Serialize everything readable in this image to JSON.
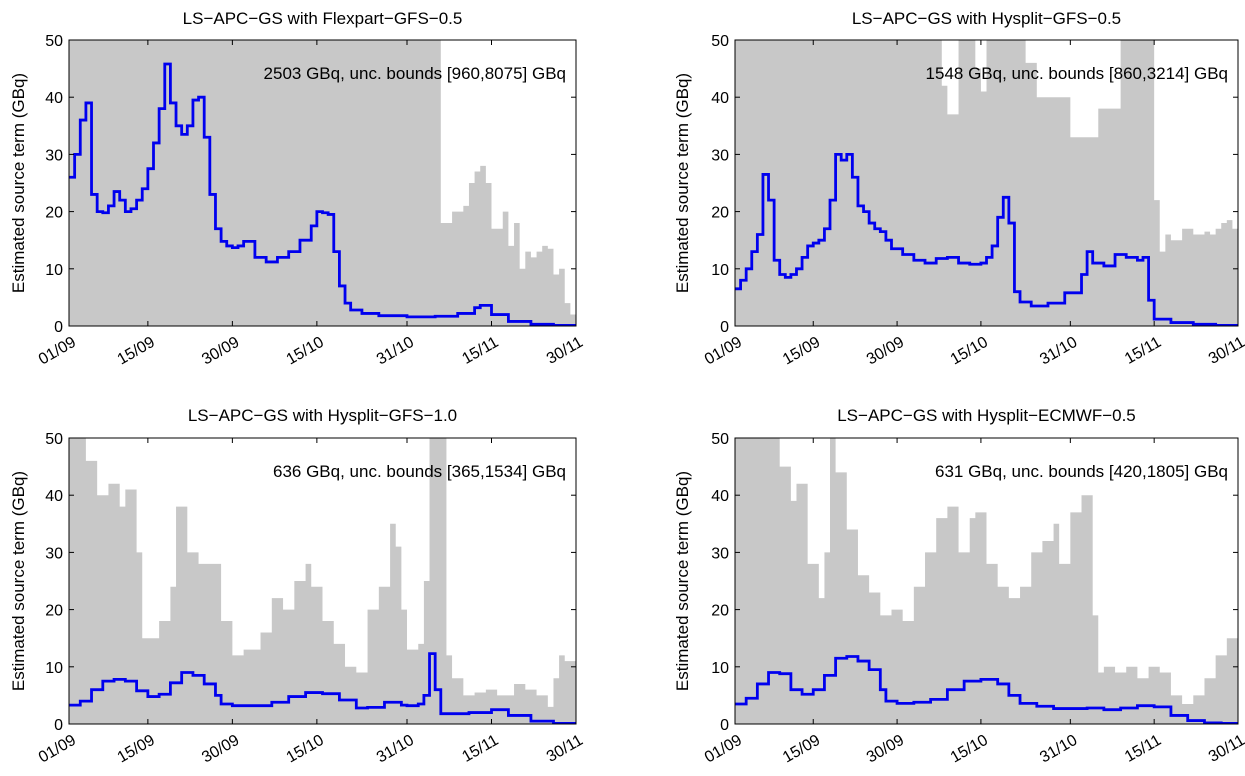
{
  "chart_data": [
    {
      "type": "line",
      "title": "LS−APC−GS with Flexpart−GFS−0.5",
      "ylabel": "Estimated source term (GBq)",
      "xlabel": "",
      "annotation": "2503 GBq, unc. bounds [960,8075] GBq",
      "xlim": [
        "01/09",
        "30/11"
      ],
      "ylim": [
        0,
        50
      ],
      "yticks": [
        0,
        10,
        20,
        30,
        40,
        50
      ],
      "xticks": [
        "01/09",
        "15/09",
        "30/09",
        "15/10",
        "31/10",
        "15/11",
        "30/11"
      ],
      "grid": false,
      "colors": {
        "estimate": "#0000ee",
        "uncertainty": "#c8c8c8"
      },
      "series": [
        {
          "role": "estimate",
          "x": [
            "01/09",
            "02/09",
            "03/09",
            "04/09",
            "05/09",
            "06/09",
            "07/09",
            "08/09",
            "09/09",
            "10/09",
            "11/09",
            "12/09",
            "13/09",
            "14/09",
            "15/09",
            "16/09",
            "17/09",
            "18/09",
            "19/09",
            "20/09",
            "21/09",
            "22/09",
            "23/09",
            "24/09",
            "25/09",
            "26/09",
            "27/09",
            "28/09",
            "29/09",
            "30/09",
            "01/10",
            "02/10",
            "04/10",
            "06/10",
            "08/10",
            "10/10",
            "12/10",
            "14/10",
            "15/10",
            "16/10",
            "17/10",
            "18/10",
            "19/10",
            "20/10",
            "21/10",
            "23/10",
            "26/10",
            "31/10",
            "05/11",
            "09/11",
            "12/11",
            "13/11",
            "15/11",
            "18/11",
            "22/11",
            "26/11",
            "30/11"
          ],
          "y": [
            26,
            30,
            36,
            39,
            23,
            20,
            19.8,
            21,
            23.5,
            22,
            20,
            20.5,
            22,
            24,
            27.5,
            32,
            38,
            45.8,
            39,
            35,
            33.5,
            35,
            39.5,
            40,
            33,
            23,
            17,
            14.8,
            14,
            13.7,
            14,
            14.8,
            12,
            11.2,
            12,
            13,
            15,
            17.5,
            20,
            19.8,
            19.5,
            13,
            7,
            4,
            2.8,
            2.2,
            1.8,
            1.6,
            1.7,
            2.2,
            3.2,
            3.6,
            2,
            0.8,
            0.3,
            0.1,
            0.05
          ]
        },
        {
          "role": "uncertainty-upper",
          "x": [
            "01/09",
            "02/09",
            "05/09",
            "10/09",
            "15/09",
            "20/09",
            "30/09",
            "10/10",
            "20/10",
            "31/10",
            "05/11",
            "06/11",
            "08/11",
            "10/11",
            "11/11",
            "12/11",
            "13/11",
            "14/11",
            "15/11",
            "17/11",
            "18/11",
            "19/11",
            "20/11",
            "21/11",
            "22/11",
            "23/11",
            "24/11",
            "25/11",
            "26/11",
            "27/11",
            "28/11",
            "29/11",
            "30/11"
          ],
          "y": [
            50,
            50,
            50,
            50,
            50,
            50,
            50,
            50,
            50,
            50,
            50,
            18,
            20,
            21,
            25,
            27,
            28,
            25,
            17,
            20,
            14,
            18,
            10,
            13,
            12,
            13,
            14,
            13.5,
            9,
            10,
            4,
            2,
            2
          ]
        }
      ]
    },
    {
      "type": "line",
      "title": "LS−APC−GS with Hysplit−GFS−0.5",
      "ylabel": "Estimated source term (GBq)",
      "xlabel": "",
      "annotation": "1548 GBq, unc. bounds [860,3214] GBq",
      "xlim": [
        "01/09",
        "30/11"
      ],
      "ylim": [
        0,
        50
      ],
      "yticks": [
        0,
        10,
        20,
        30,
        40,
        50
      ],
      "xticks": [
        "01/09",
        "15/09",
        "30/09",
        "15/10",
        "31/10",
        "15/11",
        "30/11"
      ],
      "grid": false,
      "colors": {
        "estimate": "#0000ee",
        "uncertainty": "#c8c8c8"
      },
      "series": [
        {
          "role": "estimate",
          "x": [
            "01/09",
            "02/09",
            "03/09",
            "04/09",
            "05/09",
            "06/09",
            "07/09",
            "08/09",
            "09/09",
            "10/09",
            "11/09",
            "12/09",
            "13/09",
            "14/09",
            "15/09",
            "16/09",
            "17/09",
            "18/09",
            "19/09",
            "20/09",
            "21/09",
            "22/09",
            "23/09",
            "24/09",
            "25/09",
            "26/09",
            "27/09",
            "28/09",
            "29/09",
            "01/10",
            "03/10",
            "05/10",
            "07/10",
            "09/10",
            "11/10",
            "13/10",
            "15/10",
            "16/10",
            "17/10",
            "18/10",
            "19/10",
            "20/10",
            "21/10",
            "22/10",
            "24/10",
            "27/10",
            "30/10",
            "02/11",
            "03/11",
            "04/11",
            "06/11",
            "08/11",
            "10/11",
            "12/11",
            "13/11",
            "14/11",
            "15/11",
            "18/11",
            "22/11",
            "26/11",
            "30/11"
          ],
          "y": [
            6.5,
            8,
            10,
            13,
            16,
            26.5,
            22,
            11.5,
            9,
            8.5,
            9,
            10,
            12,
            14,
            14.5,
            15,
            17,
            22,
            30,
            29,
            30,
            26,
            21,
            20,
            18,
            17,
            16.5,
            15,
            13.5,
            12.5,
            11.5,
            11,
            11.8,
            12,
            11,
            10.8,
            11,
            12,
            14,
            19,
            22.5,
            18,
            6,
            4.2,
            3.5,
            4,
            5.8,
            9,
            13,
            11,
            10.5,
            12.5,
            12,
            11.5,
            12,
            4.5,
            1.2,
            0.6,
            0.3,
            0.1,
            0.05
          ]
        },
        {
          "role": "uncertainty-upper",
          "x": [
            "01/09",
            "10/09",
            "20/09",
            "30/09",
            "05/10",
            "08/10",
            "09/10",
            "11/10",
            "14/10",
            "15/10",
            "16/10",
            "17/10",
            "19/10",
            "20/10",
            "21/10",
            "22/10",
            "23/10",
            "25/10",
            "31/10",
            "05/11",
            "09/11",
            "11/11",
            "14/11",
            "15/11",
            "16/11",
            "17/11",
            "18/11",
            "20/11",
            "22/11",
            "24/11",
            "25/11",
            "26/11",
            "27/11",
            "28/11",
            "29/11",
            "30/11"
          ],
          "y": [
            50,
            50,
            50,
            50,
            50,
            42,
            37,
            50,
            45,
            41,
            50,
            50,
            50,
            50,
            50,
            50,
            46,
            40,
            33,
            38,
            50,
            50,
            50,
            22,
            13,
            16,
            15,
            17,
            16,
            16.5,
            16,
            17,
            18,
            18.5,
            17,
            5
          ]
        }
      ]
    },
    {
      "type": "line",
      "title": "LS−APC−GS with Hysplit−GFS−1.0",
      "ylabel": "Estimated source term (GBq)",
      "xlabel": "",
      "annotation": "636 GBq, unc. bounds [365,1534] GBq",
      "xlim": [
        "01/09",
        "30/11"
      ],
      "ylim": [
        0,
        50
      ],
      "yticks": [
        0,
        10,
        20,
        30,
        40,
        50
      ],
      "xticks": [
        "01/09",
        "15/09",
        "30/09",
        "15/10",
        "31/10",
        "15/11",
        "30/11"
      ],
      "grid": false,
      "colors": {
        "estimate": "#0000ee",
        "uncertainty": "#c8c8c8"
      },
      "series": [
        {
          "role": "estimate",
          "x": [
            "01/09",
            "03/09",
            "05/09",
            "07/09",
            "09/09",
            "11/09",
            "13/09",
            "15/09",
            "17/09",
            "19/09",
            "21/09",
            "23/09",
            "25/09",
            "27/09",
            "28/09",
            "30/09",
            "03/10",
            "07/10",
            "10/10",
            "13/10",
            "16/10",
            "19/10",
            "22/10",
            "24/10",
            "27/10",
            "30/10",
            "31/10",
            "02/11",
            "03/11",
            "04/11",
            "05/11",
            "06/11",
            "08/11",
            "11/11",
            "15/11",
            "18/11",
            "22/11",
            "26/11",
            "30/11"
          ],
          "y": [
            3.3,
            4,
            6,
            7.5,
            7.8,
            7.5,
            5.8,
            4.8,
            5.2,
            7.2,
            9,
            8.5,
            7,
            5,
            3.5,
            3.2,
            3.2,
            3.8,
            4.8,
            5.5,
            5.3,
            4.2,
            2.8,
            2.9,
            3.8,
            3.3,
            3.2,
            3.5,
            5,
            12.3,
            6,
            1.8,
            1.8,
            2,
            2.5,
            1.5,
            0.5,
            0.1,
            0.05
          ]
        },
        {
          "role": "uncertainty-upper",
          "x": [
            "01/09",
            "03/09",
            "04/09",
            "06/09",
            "08/09",
            "10/09",
            "11/09",
            "13/09",
            "14/09",
            "17/09",
            "19/09",
            "20/09",
            "22/09",
            "24/09",
            "26/09",
            "28/09",
            "30/09",
            "02/10",
            "05/10",
            "07/10",
            "09/10",
            "11/10",
            "13/10",
            "14/10",
            "16/10",
            "18/10",
            "20/10",
            "22/10",
            "24/10",
            "26/10",
            "28/10",
            "29/10",
            "30/10",
            "31/10",
            "02/11",
            "03/11",
            "04/11",
            "06/11",
            "07/11",
            "08/11",
            "10/11",
            "12/11",
            "14/11",
            "16/11",
            "18/11",
            "19/11",
            "21/11",
            "23/11",
            "25/11",
            "26/11",
            "27/11",
            "28/11",
            "30/11"
          ],
          "y": [
            50,
            50,
            46,
            40,
            42,
            38,
            41,
            30,
            15,
            18,
            24,
            38,
            30,
            28,
            28,
            18,
            12,
            13,
            16,
            22,
            20,
            25,
            28,
            24,
            18,
            14,
            10,
            9,
            20,
            24,
            35,
            31,
            20,
            13,
            14,
            25,
            50,
            50,
            12,
            8,
            5,
            5.5,
            6,
            5,
            5,
            7,
            6,
            5,
            3,
            8,
            12,
            11,
            5
          ]
        }
      ]
    },
    {
      "type": "line",
      "title": "LS−APC−GS with Hysplit−ECMWF−0.5",
      "ylabel": "Estimated source term (GBq)",
      "xlabel": "",
      "annotation": "631 GBq, unc. bounds [420,1805] GBq",
      "xlim": [
        "01/09",
        "30/11"
      ],
      "ylim": [
        0,
        50
      ],
      "yticks": [
        0,
        10,
        20,
        30,
        40,
        50
      ],
      "xticks": [
        "01/09",
        "15/09",
        "30/09",
        "15/10",
        "31/10",
        "15/11",
        "30/11"
      ],
      "grid": false,
      "colors": {
        "estimate": "#0000ee",
        "uncertainty": "#c8c8c8"
      },
      "series": [
        {
          "role": "estimate",
          "x": [
            "01/09",
            "03/09",
            "05/09",
            "07/09",
            "09/09",
            "11/09",
            "13/09",
            "15/09",
            "17/09",
            "19/09",
            "21/09",
            "23/09",
            "25/09",
            "27/09",
            "28/09",
            "30/09",
            "03/10",
            "06/10",
            "09/10",
            "12/10",
            "15/10",
            "18/10",
            "20/10",
            "22/10",
            "25/10",
            "28/10",
            "31/10",
            "03/11",
            "06/11",
            "09/11",
            "12/11",
            "15/11",
            "18/11",
            "21/11",
            "24/11",
            "27/11",
            "30/11"
          ],
          "y": [
            3.5,
            4.5,
            7,
            9,
            8.8,
            6,
            5.2,
            6,
            8.5,
            11.5,
            11.8,
            11,
            9.5,
            6,
            4,
            3.6,
            3.8,
            4.3,
            6,
            7.5,
            7.8,
            7,
            5,
            3.6,
            3.1,
            2.7,
            2.7,
            2.8,
            2.5,
            2.8,
            3.2,
            3,
            1.5,
            0.6,
            0.2,
            0.1,
            0.05
          ]
        },
        {
          "role": "uncertainty-upper",
          "x": [
            "01/09",
            "06/09",
            "07/09",
            "09/09",
            "11/09",
            "12/09",
            "14/09",
            "16/09",
            "17/09",
            "18/09",
            "19/09",
            "21/09",
            "23/09",
            "25/09",
            "27/09",
            "29/09",
            "01/10",
            "03/10",
            "05/10",
            "07/10",
            "09/10",
            "11/10",
            "13/10",
            "14/10",
            "16/10",
            "18/10",
            "20/10",
            "22/10",
            "24/10",
            "26/10",
            "28/10",
            "29/10",
            "31/10",
            "02/11",
            "04/11",
            "05/11",
            "06/11",
            "08/11",
            "10/11",
            "12/11",
            "14/11",
            "16/11",
            "18/11",
            "20/11",
            "22/11",
            "24/11",
            "26/11",
            "28/11",
            "30/11"
          ],
          "y": [
            50,
            50,
            50,
            45,
            39,
            42,
            28,
            22,
            30,
            50,
            44,
            34,
            26,
            23,
            19,
            20,
            18,
            24,
            30,
            36,
            38,
            30,
            36,
            37,
            28,
            24,
            22,
            24,
            30,
            32,
            35,
            28,
            37,
            40,
            19,
            9,
            10,
            9,
            10,
            8,
            10,
            9,
            5,
            3.5,
            5,
            8,
            12,
            15,
            6
          ]
        }
      ]
    }
  ]
}
